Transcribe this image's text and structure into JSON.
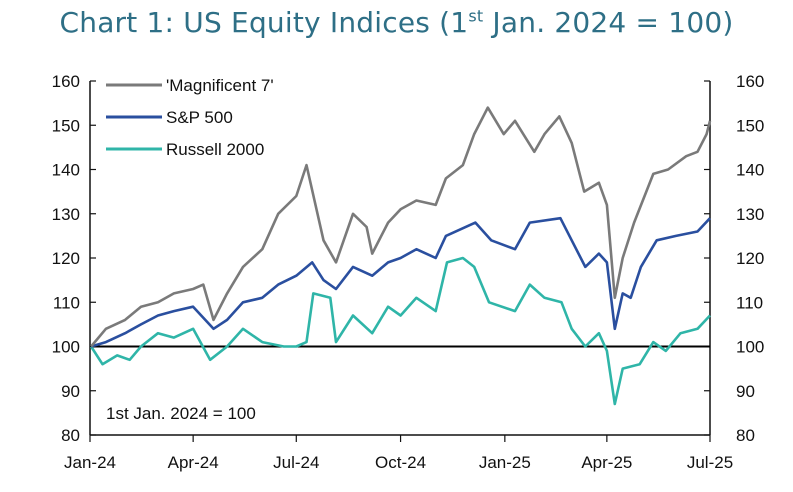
{
  "chart_data": {
    "type": "line",
    "title": {
      "prefix": "Chart 1: US Equity Indices (1",
      "sup": "st",
      "suffix": " Jan. 2024 = 100)"
    },
    "annotation": "1st Jan. 2024 = 100",
    "xlabel": "",
    "ylabel": "",
    "ylim": [
      80,
      160
    ],
    "yticks": [
      80,
      90,
      100,
      110,
      120,
      130,
      140,
      150,
      160
    ],
    "xlim": [
      "2024-01-01",
      "2025-07-01"
    ],
    "xticks": [
      {
        "date": "2024-01-01",
        "label": "Jan-24"
      },
      {
        "date": "2024-04-01",
        "label": "Apr-24"
      },
      {
        "date": "2024-07-01",
        "label": "Jul-24"
      },
      {
        "date": "2024-10-01",
        "label": "Oct-24"
      },
      {
        "date": "2025-01-01",
        "label": "Jan-25"
      },
      {
        "date": "2025-04-01",
        "label": "Apr-25"
      },
      {
        "date": "2025-07-01",
        "label": "Jul-25"
      }
    ],
    "reference_line": 100,
    "legend_position": "top-left",
    "series": [
      {
        "name": "'Magnificent 7'",
        "color": "#7a7a7a",
        "points": [
          [
            "2024-01-02",
            100
          ],
          [
            "2024-01-15",
            104
          ],
          [
            "2024-02-01",
            106
          ],
          [
            "2024-02-15",
            109
          ],
          [
            "2024-03-01",
            110
          ],
          [
            "2024-03-15",
            112
          ],
          [
            "2024-04-01",
            113
          ],
          [
            "2024-04-10",
            114
          ],
          [
            "2024-04-19",
            106
          ],
          [
            "2024-05-01",
            112
          ],
          [
            "2024-05-15",
            118
          ],
          [
            "2024-06-01",
            122
          ],
          [
            "2024-06-15",
            130
          ],
          [
            "2024-07-01",
            134
          ],
          [
            "2024-07-10",
            141
          ],
          [
            "2024-07-25",
            124
          ],
          [
            "2024-08-05",
            119
          ],
          [
            "2024-08-20",
            130
          ],
          [
            "2024-09-01",
            127
          ],
          [
            "2024-09-06",
            121
          ],
          [
            "2024-09-20",
            128
          ],
          [
            "2024-10-01",
            131
          ],
          [
            "2024-10-15",
            133
          ],
          [
            "2024-11-01",
            132
          ],
          [
            "2024-11-10",
            138
          ],
          [
            "2024-11-25",
            141
          ],
          [
            "2024-12-05",
            148
          ],
          [
            "2024-12-17",
            154
          ],
          [
            "2024-12-31",
            148
          ],
          [
            "2025-01-10",
            151
          ],
          [
            "2025-01-27",
            144
          ],
          [
            "2025-02-05",
            148
          ],
          [
            "2025-02-18",
            152
          ],
          [
            "2025-03-01",
            146
          ],
          [
            "2025-03-12",
            135
          ],
          [
            "2025-03-25",
            137
          ],
          [
            "2025-04-01",
            132
          ],
          [
            "2025-04-08",
            111
          ],
          [
            "2025-04-15",
            120
          ],
          [
            "2025-04-25",
            128
          ],
          [
            "2025-05-12",
            139
          ],
          [
            "2025-05-25",
            140
          ],
          [
            "2025-06-10",
            143
          ],
          [
            "2025-06-20",
            144
          ],
          [
            "2025-06-28",
            148
          ],
          [
            "2025-07-01",
            151
          ]
        ]
      },
      {
        "name": "S&P 500",
        "color": "#2a4f9f",
        "points": [
          [
            "2024-01-02",
            100
          ],
          [
            "2024-01-15",
            101
          ],
          [
            "2024-02-01",
            103
          ],
          [
            "2024-02-15",
            105
          ],
          [
            "2024-03-01",
            107
          ],
          [
            "2024-03-15",
            108
          ],
          [
            "2024-04-01",
            109
          ],
          [
            "2024-04-19",
            104
          ],
          [
            "2024-05-01",
            106
          ],
          [
            "2024-05-15",
            110
          ],
          [
            "2024-06-01",
            111
          ],
          [
            "2024-06-15",
            114
          ],
          [
            "2024-07-01",
            116
          ],
          [
            "2024-07-15",
            119
          ],
          [
            "2024-07-25",
            115
          ],
          [
            "2024-08-05",
            113
          ],
          [
            "2024-08-20",
            118
          ],
          [
            "2024-09-06",
            116
          ],
          [
            "2024-09-20",
            119
          ],
          [
            "2024-10-01",
            120
          ],
          [
            "2024-10-15",
            122
          ],
          [
            "2024-11-01",
            120
          ],
          [
            "2024-11-10",
            125
          ],
          [
            "2024-12-06",
            128
          ],
          [
            "2024-12-20",
            124
          ],
          [
            "2025-01-10",
            122
          ],
          [
            "2025-01-23",
            128
          ],
          [
            "2025-02-19",
            129
          ],
          [
            "2025-03-01",
            124
          ],
          [
            "2025-03-13",
            118
          ],
          [
            "2025-03-25",
            121
          ],
          [
            "2025-04-01",
            119
          ],
          [
            "2025-04-08",
            104
          ],
          [
            "2025-04-15",
            112
          ],
          [
            "2025-04-22",
            111
          ],
          [
            "2025-05-01",
            118
          ],
          [
            "2025-05-15",
            124
          ],
          [
            "2025-06-01",
            125
          ],
          [
            "2025-06-20",
            126
          ],
          [
            "2025-07-01",
            129
          ]
        ]
      },
      {
        "name": "Russell 2000",
        "color": "#2fb5a8",
        "points": [
          [
            "2024-01-02",
            100
          ],
          [
            "2024-01-12",
            96
          ],
          [
            "2024-01-25",
            98
          ],
          [
            "2024-02-05",
            97
          ],
          [
            "2024-02-15",
            100
          ],
          [
            "2024-03-01",
            103
          ],
          [
            "2024-03-15",
            102
          ],
          [
            "2024-04-01",
            104
          ],
          [
            "2024-04-16",
            97
          ],
          [
            "2024-05-01",
            100
          ],
          [
            "2024-05-15",
            104
          ],
          [
            "2024-06-01",
            101
          ],
          [
            "2024-06-20",
            100
          ],
          [
            "2024-07-01",
            100
          ],
          [
            "2024-07-10",
            101
          ],
          [
            "2024-07-16",
            112
          ],
          [
            "2024-07-31",
            111
          ],
          [
            "2024-08-05",
            101
          ],
          [
            "2024-08-20",
            107
          ],
          [
            "2024-09-06",
            103
          ],
          [
            "2024-09-20",
            109
          ],
          [
            "2024-10-01",
            107
          ],
          [
            "2024-10-15",
            111
          ],
          [
            "2024-11-01",
            108
          ],
          [
            "2024-11-11",
            119
          ],
          [
            "2024-11-25",
            120
          ],
          [
            "2024-12-05",
            118
          ],
          [
            "2024-12-18",
            110
          ],
          [
            "2025-01-10",
            108
          ],
          [
            "2025-01-23",
            114
          ],
          [
            "2025-02-05",
            111
          ],
          [
            "2025-02-20",
            110
          ],
          [
            "2025-03-01",
            104
          ],
          [
            "2025-03-13",
            100
          ],
          [
            "2025-03-25",
            103
          ],
          [
            "2025-04-01",
            99
          ],
          [
            "2025-04-08",
            87
          ],
          [
            "2025-04-15",
            95
          ],
          [
            "2025-04-30",
            96
          ],
          [
            "2025-05-12",
            101
          ],
          [
            "2025-05-23",
            99
          ],
          [
            "2025-06-05",
            103
          ],
          [
            "2025-06-20",
            104
          ],
          [
            "2025-07-01",
            107
          ]
        ]
      }
    ]
  }
}
